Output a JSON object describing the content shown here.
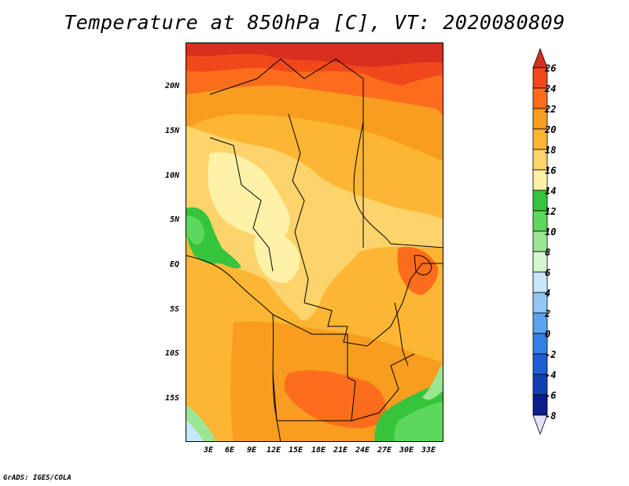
{
  "title": "Temperature at 850hPa [C], VT: 2020080809",
  "credit": "GrADS: IGES/COLA",
  "map": {
    "region": "Central Africa",
    "lat_ticks": [
      "20N",
      "15N",
      "10N",
      "5N",
      "EQ",
      "5S",
      "10S",
      "15S"
    ],
    "lon_ticks": [
      "3E",
      "6E",
      "9E",
      "12E",
      "15E",
      "18E",
      "21E",
      "24E",
      "27E",
      "30E",
      "33E"
    ]
  },
  "colorbar": {
    "labels": [
      "26",
      "24",
      "22",
      "20",
      "18",
      "16",
      "14",
      "12",
      "10",
      "8",
      "6",
      "4",
      "2",
      "0",
      "-2",
      "-4",
      "-6",
      "-8"
    ],
    "colors": [
      "#d7301f",
      "#f0481a",
      "#fb6d1c",
      "#f99d20",
      "#fdb633",
      "#fdd36b",
      "#fff2a8",
      "#36c43c",
      "#5ed85c",
      "#9be693",
      "#d6f5d1",
      "#c7e6fa",
      "#8fc8f5",
      "#5aa3ef",
      "#3580e4",
      "#1c5fd1",
      "#1040b0",
      "#0a1d8a",
      "#0a0c5e"
    ],
    "under_color": "#e6e0f8"
  }
}
